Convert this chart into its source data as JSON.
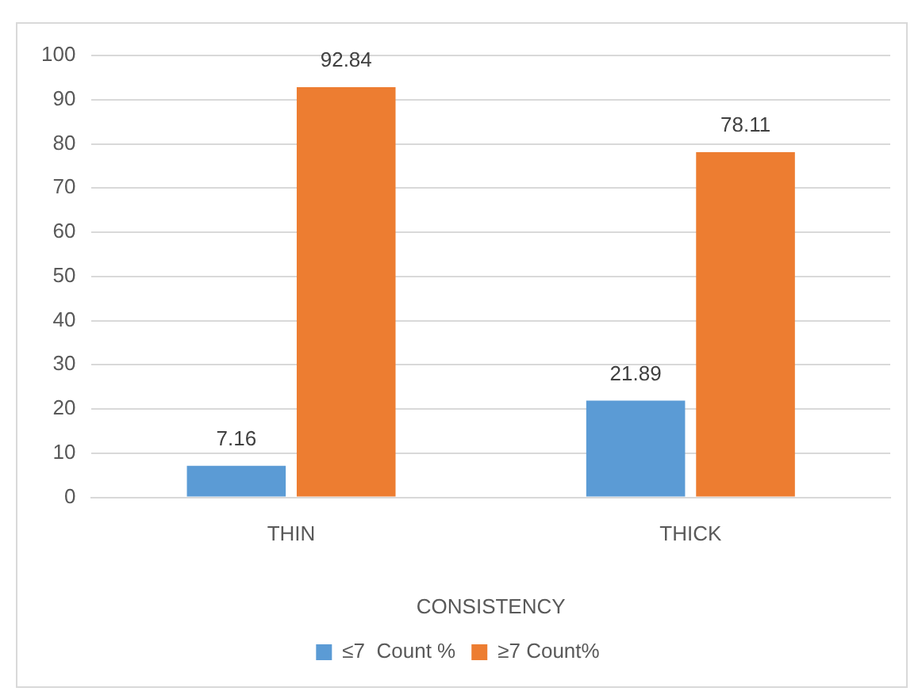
{
  "chart_data": {
    "type": "bar",
    "categories": [
      "THIN",
      "THICK"
    ],
    "series": [
      {
        "name": "≤7  Count %",
        "color": "#5b9bd5",
        "values": [
          7.16,
          21.89
        ]
      },
      {
        "name": "≥7 Count%",
        "color": "#ed7d31",
        "values": [
          92.84,
          78.11
        ]
      }
    ],
    "xlabel": "CONSISTENCY",
    "ylim": [
      0,
      100
    ],
    "yticks": [
      0,
      10,
      20,
      30,
      40,
      50,
      60,
      70,
      80,
      90,
      100
    ],
    "grid": "y",
    "legend": "bottom",
    "data_labels": true
  }
}
